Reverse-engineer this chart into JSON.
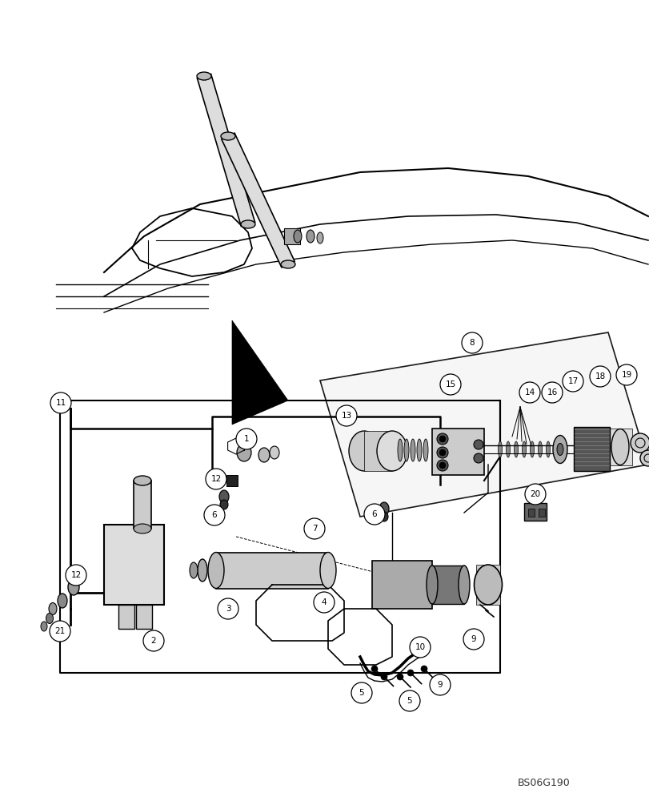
{
  "background_color": "#ffffff",
  "figure_width": 8.12,
  "figure_height": 10.0,
  "dpi": 100,
  "watermark_text": "BS06G190",
  "watermark_fontsize": 9,
  "line_color": "#000000",
  "label_fontsize": 7.5
}
